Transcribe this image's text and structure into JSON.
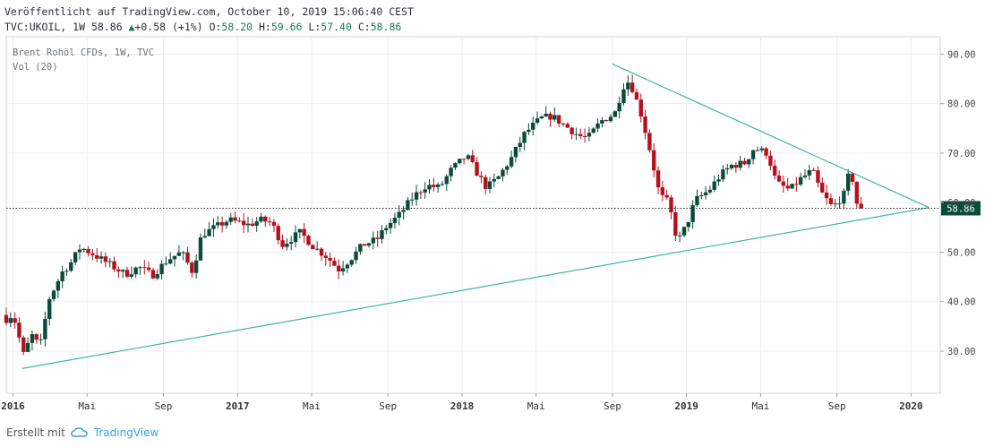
{
  "header": {
    "published": "Veröffentlicht auf TradingView.com, October 10, 2019 15:06:40 CEST",
    "symbol": "TVC:UKOIL, 1W",
    "last": "58.86",
    "change": "+0.58 (+1%)",
    "open_label": "O:",
    "open": "58.20",
    "high_label": "H:",
    "high": "59.66",
    "low_label": "L:",
    "low": "57.40",
    "close_label": "C:",
    "close": "58.86"
  },
  "chart_data": {
    "type": "candlestick",
    "legend": [
      "Brent Rohöl CFDs, 1W, TVC",
      "Vol (20)"
    ],
    "y_ticks": [
      30,
      40,
      50,
      60,
      70,
      80,
      90
    ],
    "y_tick_labels": [
      "30.00",
      "40.00",
      "50.00",
      "60.00",
      "70.00",
      "80.00",
      "90.00"
    ],
    "ylim": [
      21.5,
      93.5
    ],
    "x_ticks": [
      {
        "t": 2016.0,
        "label": "2016",
        "bold": true
      },
      {
        "t": 2016.33,
        "label": "Mai",
        "bold": false
      },
      {
        "t": 2016.67,
        "label": "Sep",
        "bold": false
      },
      {
        "t": 2017.0,
        "label": "2017",
        "bold": true
      },
      {
        "t": 2017.33,
        "label": "Mai",
        "bold": false
      },
      {
        "t": 2017.67,
        "label": "Sep",
        "bold": false
      },
      {
        "t": 2018.0,
        "label": "2018",
        "bold": true
      },
      {
        "t": 2018.33,
        "label": "Mai",
        "bold": false
      },
      {
        "t": 2018.67,
        "label": "Sep",
        "bold": false
      },
      {
        "t": 2019.0,
        "label": "2019",
        "bold": true
      },
      {
        "t": 2019.33,
        "label": "Mai",
        "bold": false
      },
      {
        "t": 2019.67,
        "label": "Sep",
        "bold": false
      },
      {
        "t": 2020.0,
        "label": "2020",
        "bold": true
      }
    ],
    "xlim": [
      2015.97,
      2020.13
    ],
    "price_line": 58.86,
    "price_label": "58.86",
    "trendlines": [
      {
        "from": [
          2016.04,
          26.5
        ],
        "to": [
          2020.08,
          59.0
        ]
      },
      {
        "from": [
          2018.67,
          88.0
        ],
        "to": [
          2020.08,
          59.0
        ]
      }
    ],
    "colors": {
      "up": "#0b4b3a",
      "down": "#b5101c",
      "trend": "#3fb6a0",
      "grid": "#e9eef2"
    },
    "close_path": [
      [
        2015.97,
        36.5
      ],
      [
        2016.0,
        37.5
      ],
      [
        2016.05,
        28.8
      ],
      [
        2016.08,
        33.5
      ],
      [
        2016.12,
        30.8
      ],
      [
        2016.16,
        40.5
      ],
      [
        2016.22,
        46.0
      ],
      [
        2016.26,
        48.0
      ],
      [
        2016.3,
        51.0
      ],
      [
        2016.36,
        49.5
      ],
      [
        2016.43,
        47.5
      ],
      [
        2016.5,
        45.5
      ],
      [
        2016.56,
        47.0
      ],
      [
        2016.62,
        45.3
      ],
      [
        2016.69,
        48.5
      ],
      [
        2016.75,
        50.0
      ],
      [
        2016.8,
        46.0
      ],
      [
        2016.84,
        53.5
      ],
      [
        2016.9,
        55.0
      ],
      [
        2016.96,
        56.5
      ],
      [
        2017.05,
        55.5
      ],
      [
        2017.1,
        56.5
      ],
      [
        2017.15,
        56.0
      ],
      [
        2017.2,
        51.5
      ],
      [
        2017.28,
        54.0
      ],
      [
        2017.34,
        51.0
      ],
      [
        2017.4,
        49.0
      ],
      [
        2017.45,
        46.5
      ],
      [
        2017.5,
        48.5
      ],
      [
        2017.56,
        51.5
      ],
      [
        2017.62,
        52.5
      ],
      [
        2017.66,
        55.0
      ],
      [
        2017.72,
        57.5
      ],
      [
        2017.78,
        61.0
      ],
      [
        2017.84,
        63.5
      ],
      [
        2017.9,
        63.0
      ],
      [
        2017.95,
        66.5
      ],
      [
        2018.02,
        69.5
      ],
      [
        2018.08,
        65.0
      ],
      [
        2018.11,
        63.0
      ],
      [
        2018.16,
        65.0
      ],
      [
        2018.22,
        69.0
      ],
      [
        2018.28,
        74.0
      ],
      [
        2018.35,
        77.0
      ],
      [
        2018.4,
        77.5
      ],
      [
        2018.46,
        75.5
      ],
      [
        2018.52,
        73.5
      ],
      [
        2018.56,
        73.0
      ],
      [
        2018.62,
        76.5
      ],
      [
        2018.68,
        78.0
      ],
      [
        2018.73,
        85.0
      ],
      [
        2018.76,
        83.0
      ],
      [
        2018.8,
        77.5
      ],
      [
        2018.84,
        70.0
      ],
      [
        2018.88,
        61.5
      ],
      [
        2018.92,
        60.0
      ],
      [
        2018.96,
        52.0
      ],
      [
        2019.0,
        55.5
      ],
      [
        2019.04,
        60.5
      ],
      [
        2019.1,
        62.5
      ],
      [
        2019.15,
        65.5
      ],
      [
        2019.2,
        67.5
      ],
      [
        2019.26,
        68.0
      ],
      [
        2019.3,
        71.0
      ],
      [
        2019.36,
        70.0
      ],
      [
        2019.4,
        64.0
      ],
      [
        2019.46,
        62.5
      ],
      [
        2019.5,
        64.5
      ],
      [
        2019.56,
        66.5
      ],
      [
        2019.6,
        62.0
      ],
      [
        2019.65,
        59.0
      ],
      [
        2019.7,
        61.5
      ],
      [
        2019.73,
        67.0
      ],
      [
        2019.76,
        59.5
      ],
      [
        2019.78,
        58.86
      ]
    ]
  },
  "footer": {
    "made_with": "Erstellt mit",
    "brand": "TradingView"
  }
}
